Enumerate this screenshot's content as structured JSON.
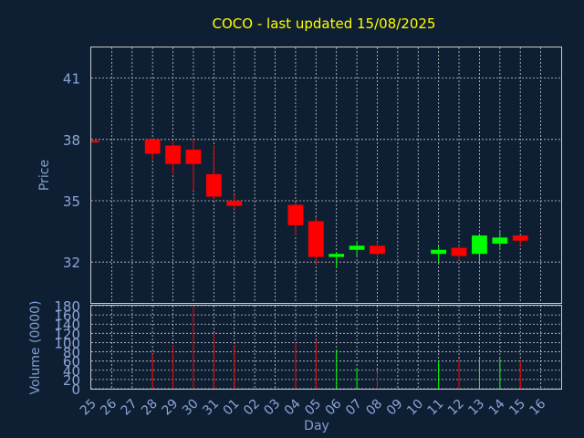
{
  "chart_data": {
    "type": "candlestick",
    "title": "COCO - last updated 15/08/2025",
    "ylabel_price": "Price",
    "ylabel_volume": "Volume (0000)",
    "xlabel": "Day",
    "price_ylim": [
      30,
      42.5
    ],
    "price_yticks": [
      32,
      35,
      38,
      41
    ],
    "volume_ylim": [
      0,
      180
    ],
    "volume_yticks": [
      0,
      20,
      40,
      60,
      80,
      100,
      120,
      140,
      160,
      180
    ],
    "x_ticks": [
      "25",
      "26",
      "27",
      "28",
      "29",
      "30",
      "31",
      "01",
      "02",
      "03",
      "04",
      "05",
      "06",
      "07",
      "08",
      "09",
      "10",
      "11",
      "12",
      "13",
      "14",
      "15",
      "16"
    ],
    "colors": {
      "up": "#00ff00",
      "down": "#ff0000",
      "background": "#0f1f33"
    },
    "candles": [
      {
        "day": "25",
        "open": 37.95,
        "high": 37.95,
        "low": 37.85,
        "close": 37.85,
        "volume": 0
      },
      {
        "day": "28",
        "open": 38.0,
        "high": 38.0,
        "low": 37.0,
        "close": 37.3,
        "volume": 75
      },
      {
        "day": "29",
        "open": 37.7,
        "high": 37.9,
        "low": 36.3,
        "close": 36.8,
        "volume": 95
      },
      {
        "day": "30",
        "open": 37.5,
        "high": 38.0,
        "low": 35.5,
        "close": 36.8,
        "volume": 180
      },
      {
        "day": "31",
        "open": 36.3,
        "high": 37.7,
        "low": 35.1,
        "close": 35.2,
        "volume": 120
      },
      {
        "day": "01",
        "open": 35.0,
        "high": 35.3,
        "low": 34.6,
        "close": 34.75,
        "volume": 95
      },
      {
        "day": "04",
        "open": 34.8,
        "high": 34.9,
        "low": 33.3,
        "close": 33.8,
        "volume": 100
      },
      {
        "day": "05",
        "open": 34.0,
        "high": 34.2,
        "low": 31.9,
        "close": 32.25,
        "volume": 105
      },
      {
        "day": "06",
        "open": 32.25,
        "high": 32.5,
        "low": 31.7,
        "close": 32.4,
        "volume": 85
      },
      {
        "day": "07",
        "open": 32.6,
        "high": 33.0,
        "low": 32.3,
        "close": 32.8,
        "volume": 45
      },
      {
        "day": "08",
        "open": 32.8,
        "high": 33.0,
        "low": 32.2,
        "close": 32.4,
        "volume": 35
      },
      {
        "day": "11",
        "open": 32.4,
        "high": 32.8,
        "low": 32.0,
        "close": 32.6,
        "volume": 60
      },
      {
        "day": "12",
        "open": 32.7,
        "high": 32.8,
        "low": 32.1,
        "close": 32.3,
        "volume": 65
      },
      {
        "day": "13",
        "open": 32.4,
        "high": 33.4,
        "low": 31.9,
        "close": 33.3,
        "volume": 65
      },
      {
        "day": "14",
        "open": 32.9,
        "high": 33.5,
        "low": 32.7,
        "close": 33.2,
        "volume": 65
      },
      {
        "day": "15",
        "open": 33.3,
        "high": 33.3,
        "low": 32.8,
        "close": 33.05,
        "volume": 60
      }
    ]
  }
}
